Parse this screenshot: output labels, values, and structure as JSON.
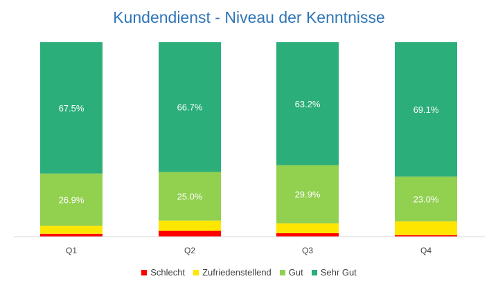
{
  "chart_data": {
    "type": "bar",
    "stacked": true,
    "percent": true,
    "title": "Kundendienst - Niveau der Kenntnisse",
    "categories": [
      "Q1",
      "Q2",
      "Q3",
      "Q4"
    ],
    "series": [
      {
        "name": "Schlecht",
        "color": "#FF0000",
        "values": [
          1.5,
          3.0,
          1.8,
          0.8
        ],
        "label": false
      },
      {
        "name": "Zufriedenstellend",
        "color": "#FFE600",
        "values": [
          4.1,
          5.3,
          5.1,
          7.1
        ],
        "label": false
      },
      {
        "name": "Gut",
        "color": "#92D050",
        "values": [
          26.9,
          25.0,
          29.9,
          23.0
        ],
        "label": true
      },
      {
        "name": "Sehr Gut",
        "color": "#2BAE7A",
        "values": [
          67.5,
          66.7,
          63.2,
          69.1
        ],
        "label": true
      }
    ],
    "ylim": [
      0,
      100
    ],
    "grid": false,
    "legend_position": "bottom"
  }
}
